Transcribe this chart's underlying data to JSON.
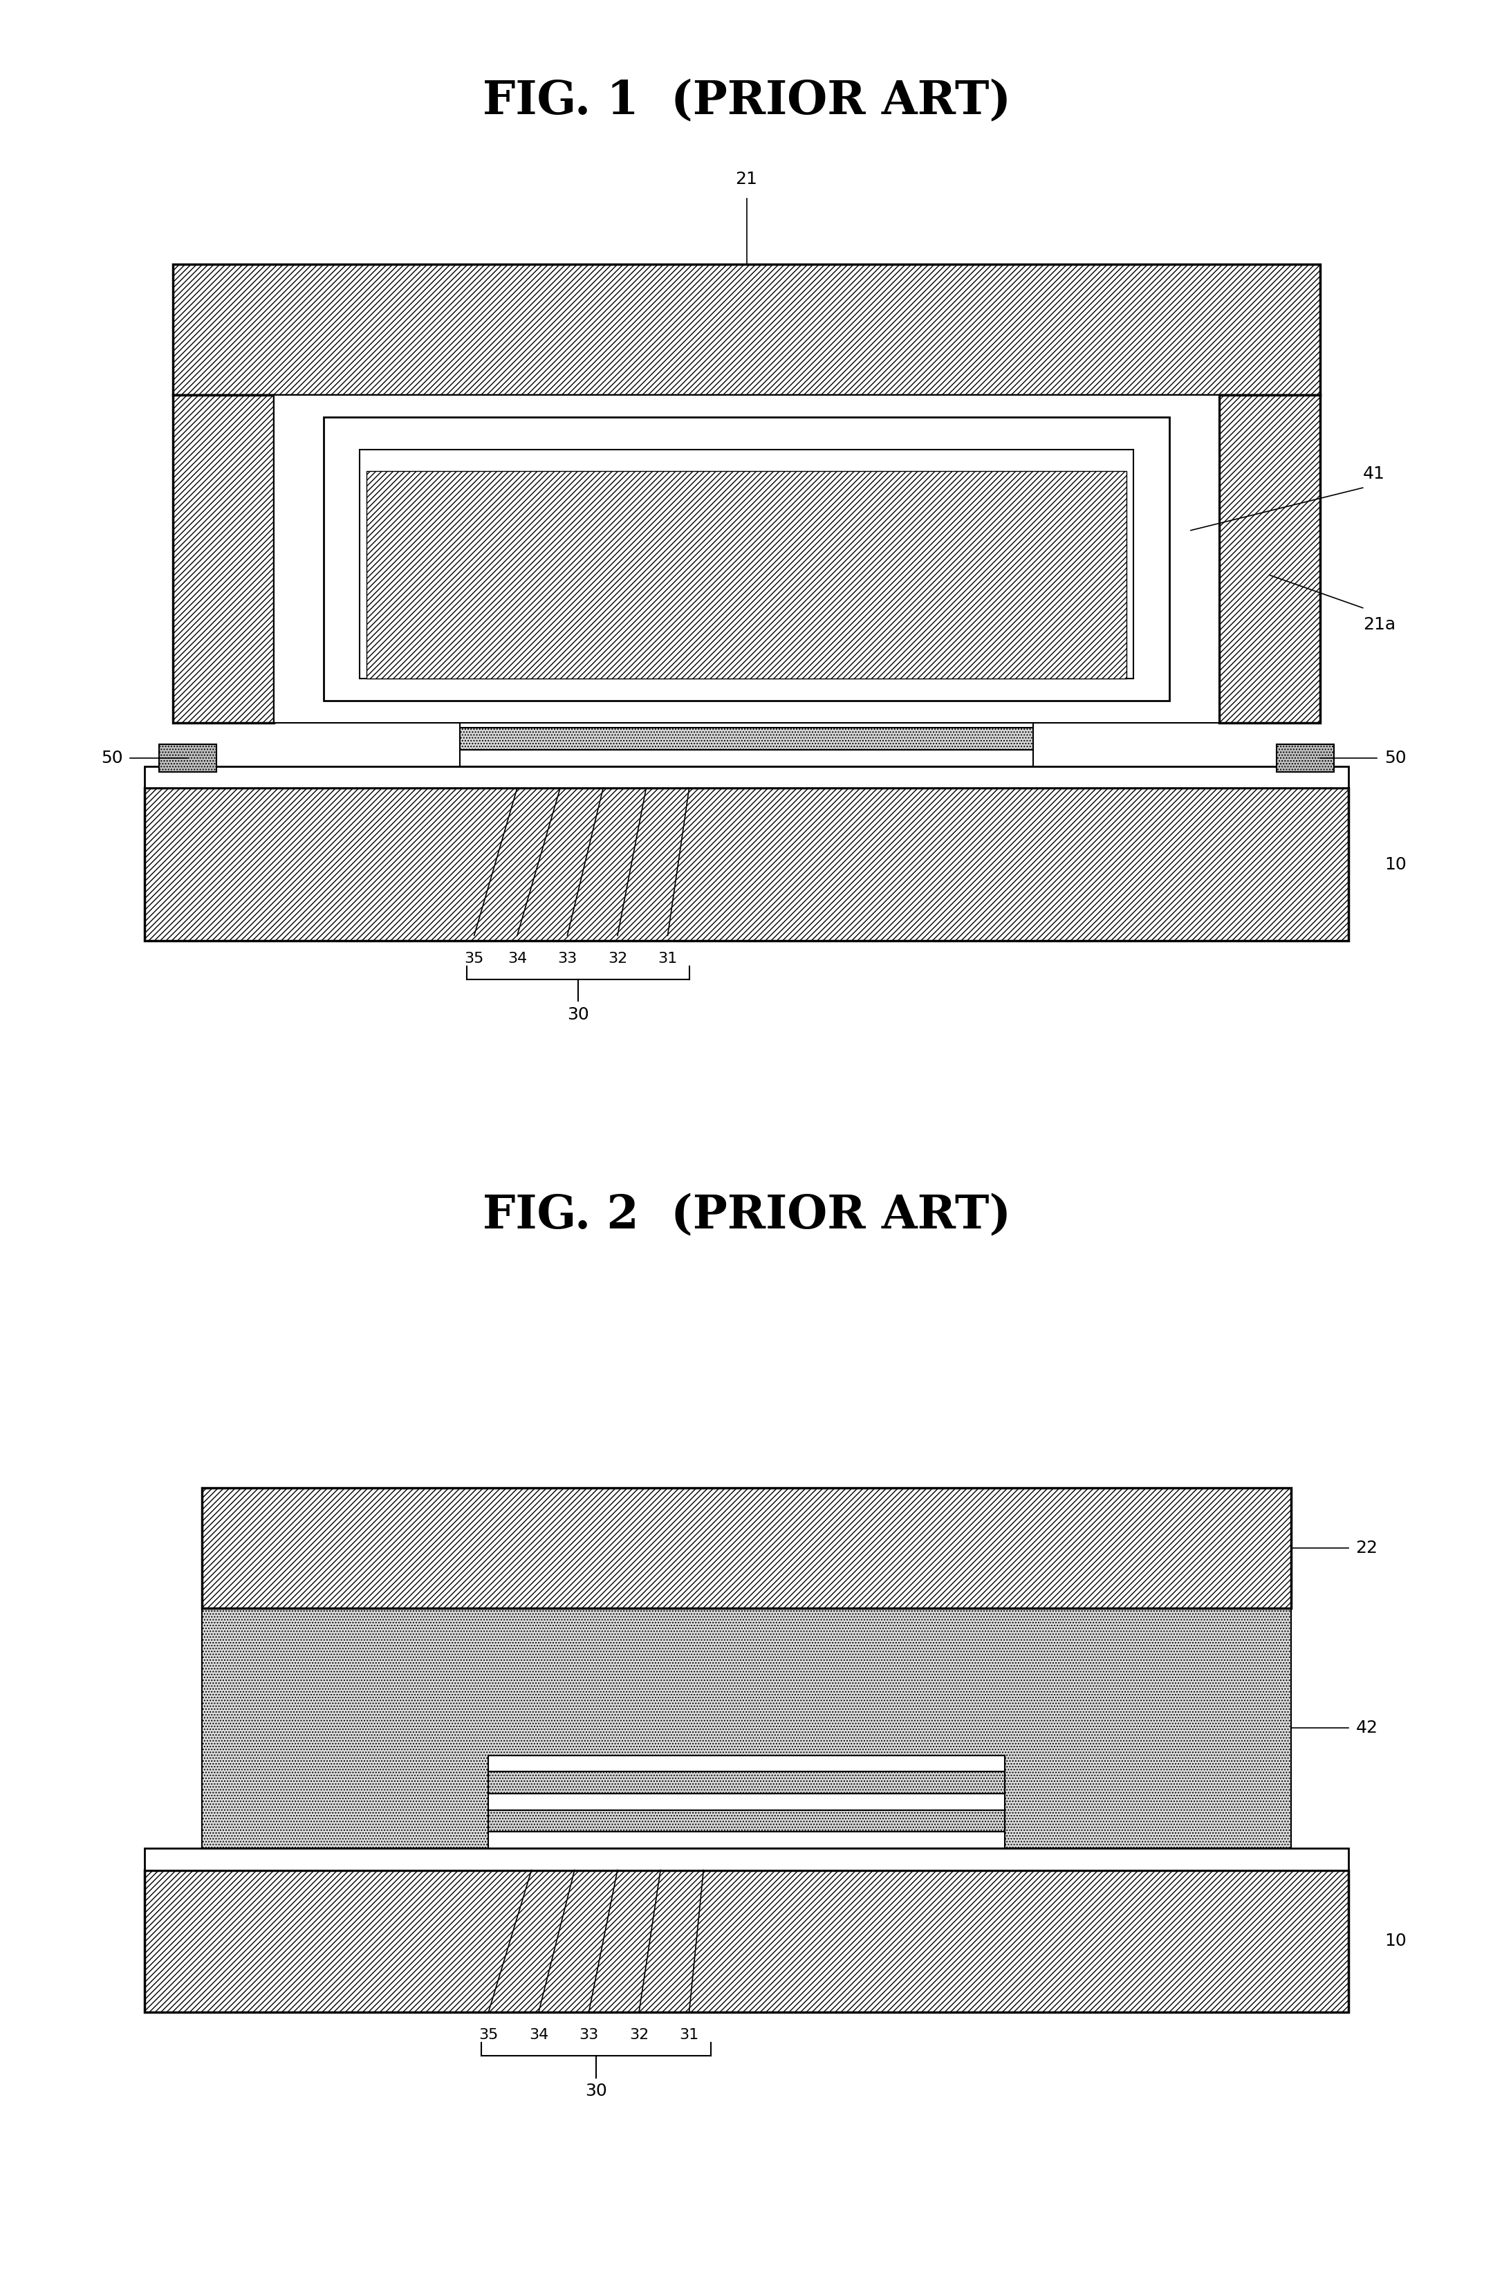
{
  "fig1_title": "FIG. 1  (PRIOR ART)",
  "fig2_title": "FIG. 2  (PRIOR ART)",
  "bg_color": "#ffffff",
  "label_fontsize": 18,
  "title_fontsize": 48
}
